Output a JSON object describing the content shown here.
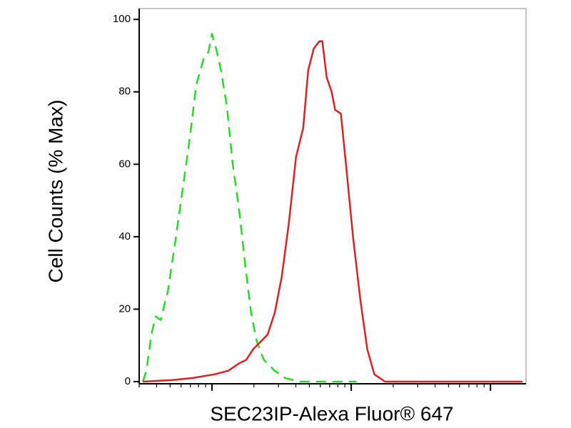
{
  "chart_data": {
    "type": "line",
    "x_label": "SEC23IP-Alexa Fluor® 647",
    "y_label": "Cell Counts (% Max)",
    "xscale": "log",
    "xlim": [
      30,
      18000
    ],
    "xticks": [
      100,
      1000,
      10000
    ],
    "ylim": [
      -0.6,
      103
    ],
    "yticks": [
      0,
      20,
      40,
      60,
      80,
      100
    ],
    "grid": false,
    "series": [
      {
        "color": "#22dd22",
        "dash": true,
        "x": [
          31.9,
          33.8,
          36.7,
          39.4,
          42.8,
          48.2,
          54.2,
          61.0,
          68.6,
          77.1,
          86.9,
          94.3,
          100,
          107,
          116,
          128,
          141,
          156,
          176,
          191,
          210,
          236,
          282,
          336,
          426,
          682,
          1091
        ],
        "values": [
          0,
          3,
          13,
          18,
          17,
          25,
          38,
          52,
          66,
          82,
          89,
          91,
          96,
          92,
          86,
          76,
          60,
          48,
          30,
          19,
          11,
          6,
          3,
          1,
          0,
          0,
          0
        ]
      },
      {
        "color": "#e02020",
        "dash": false,
        "x": [
          31.9,
          51.1,
          72.8,
          104,
          131,
          156,
          176,
          198,
          223,
          251,
          282,
          317,
          357,
          401,
          452,
          491,
          539,
          591,
          620,
          666,
          723,
          767,
          843,
          916,
          1030,
          1159,
          1303,
          1466,
          1750,
          2215,
          17000
        ],
        "values": [
          0,
          0.4,
          1,
          2,
          3,
          5,
          6,
          9,
          11,
          13,
          19,
          29,
          44,
          62,
          70,
          86,
          92,
          94,
          94,
          84,
          80,
          75,
          74,
          60,
          40,
          23,
          9,
          2,
          0,
          0,
          0
        ]
      }
    ]
  }
}
